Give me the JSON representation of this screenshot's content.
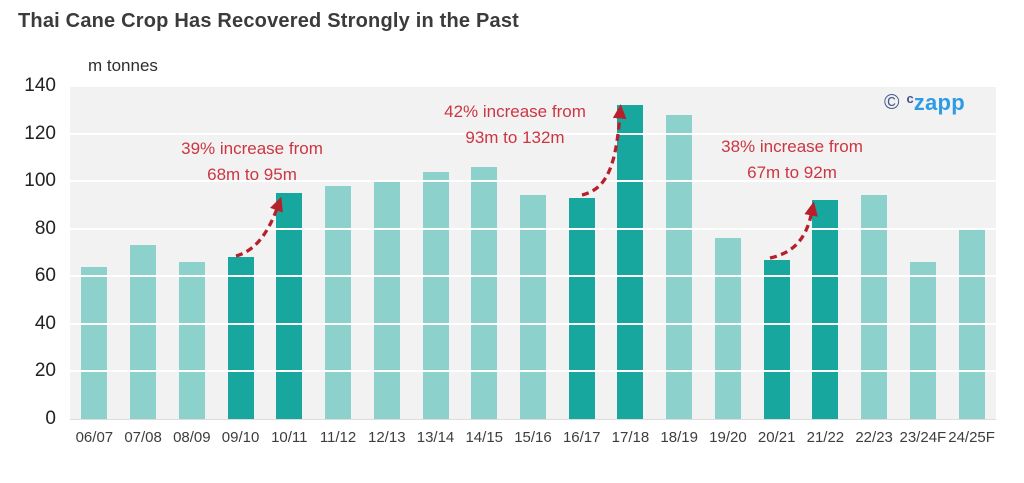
{
  "page": {
    "title": "Thai Cane Crop Has Recovered Strongly in the Past",
    "units_label": "m tonnes"
  },
  "watermark": {
    "copyright_symbol": "©",
    "brand_small_c": "c",
    "brand_text": "zapp"
  },
  "colors": {
    "title_text": "#3B3B3B",
    "axis_text": "#3D3D3D",
    "plot_background": "#F2F2F2",
    "gridline": "#FFFFFF",
    "bar": "#8DD1CD",
    "bar_highlight": "#17A79F",
    "annotation_text": "#CB3642",
    "arrow": "#B7202A",
    "watermark_navy": "#45568D",
    "watermark_blue": "#2D9CE5"
  },
  "chart_data": {
    "type": "bar",
    "title": "Thai Cane Crop Has Recovered Strongly in the Past",
    "xlabel": "",
    "ylabel": "m tonnes",
    "ylim": [
      0,
      140
    ],
    "yticks": [
      0,
      20,
      40,
      60,
      80,
      100,
      120,
      140
    ],
    "grid": true,
    "legend": false,
    "categories": [
      "06/07",
      "07/08",
      "08/09",
      "09/10",
      "10/11",
      "11/12",
      "12/13",
      "13/14",
      "14/15",
      "15/16",
      "16/17",
      "17/18",
      "18/19",
      "19/20",
      "20/21",
      "21/22",
      "22/23",
      "23/24F",
      "24/25F"
    ],
    "values": [
      64,
      73,
      66,
      68,
      95,
      98,
      100,
      104,
      106,
      94,
      93,
      132,
      128,
      76,
      67,
      92,
      94,
      66,
      80
    ],
    "highlighted_categories": [
      "09/10",
      "10/11",
      "16/17",
      "17/18",
      "20/21",
      "21/22"
    ],
    "annotations": [
      {
        "line1": "39% increase from",
        "line2": "68m to 95m",
        "from_category": "09/10",
        "to_category": "10/11"
      },
      {
        "line1": "42% increase from",
        "line2": "93m to 132m",
        "from_category": "16/17",
        "to_category": "17/18"
      },
      {
        "line1": "38% increase from",
        "line2": "67m to 92m",
        "from_category": "20/21",
        "to_category": "21/22"
      }
    ]
  }
}
